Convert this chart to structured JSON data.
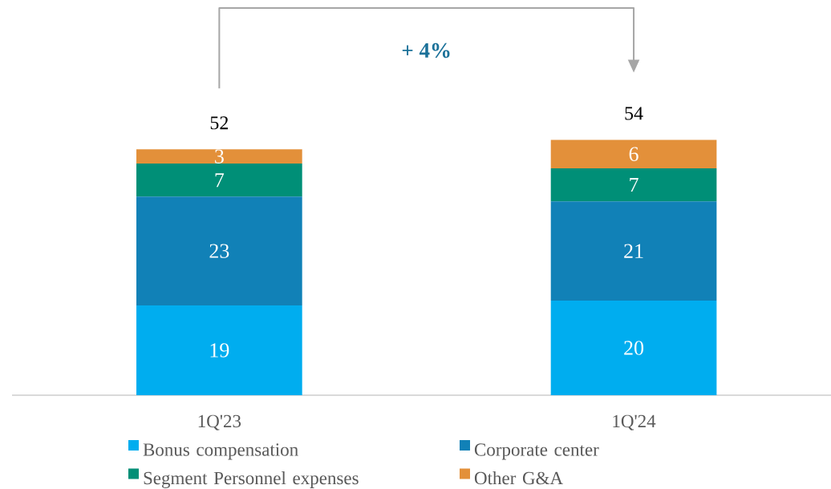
{
  "chart_data": {
    "type": "bar",
    "stacked": true,
    "categories": [
      "1Q'23",
      "1Q'24"
    ],
    "series": [
      {
        "name": "Bonus compensation",
        "color": "#00adef",
        "values": [
          19,
          20
        ]
      },
      {
        "name": "Corporate center",
        "color": "#1181b7",
        "values": [
          23,
          21
        ]
      },
      {
        "name": "Segment Personnel expenses",
        "color": "#008f77",
        "values": [
          7,
          7
        ]
      },
      {
        "name": "Other G&A",
        "color": "#e3903a",
        "values": [
          3,
          6
        ]
      }
    ],
    "data_labels": true,
    "totals": [
      "52",
      "54"
    ],
    "annotations": [
      "+ 4%"
    ],
    "legend": "bottom"
  }
}
